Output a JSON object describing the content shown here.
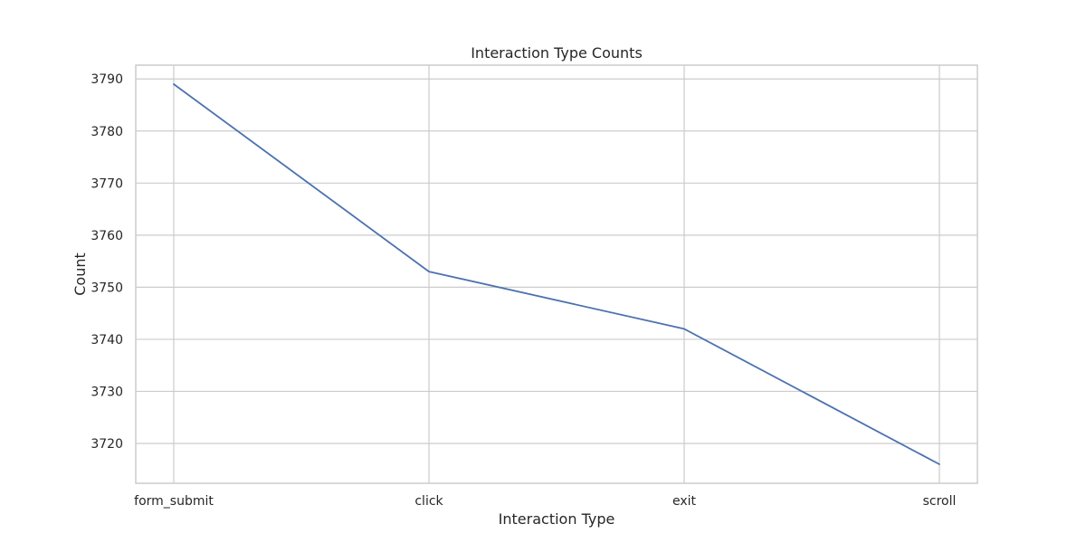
{
  "chart_data": {
    "type": "line",
    "title": "Interaction Type Counts",
    "xlabel": "Interaction Type",
    "ylabel": "Count",
    "categories": [
      "form_submit",
      "click",
      "exit",
      "scroll"
    ],
    "series": [
      {
        "values": [
          3789,
          3753,
          3742,
          3716
        ]
      }
    ],
    "ylim": [
      3712.35,
      3792.65
    ],
    "yticks": [
      3720,
      3730,
      3740,
      3750,
      3760,
      3770,
      3780,
      3790
    ],
    "grid": true,
    "line_color": "#4c72b0"
  }
}
